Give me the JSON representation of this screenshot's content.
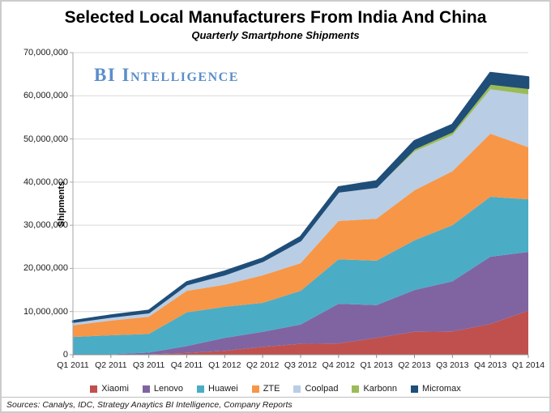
{
  "header": {
    "title": "Selected Local Manufacturers From India And China",
    "subtitle": "Quarterly Smartphone Shipments"
  },
  "watermark": "BI Intelligence",
  "footer": {
    "sources": "Sources: Canalys, IDC, Strategy Anaytics BI Intelligence, Company Reports"
  },
  "chart_data": {
    "type": "area",
    "stacked": true,
    "title": "Selected Local Manufacturers From India And China",
    "subtitle": "Quarterly Smartphone Shipments",
    "xlabel": "",
    "ylabel": "Shipments",
    "ylim": [
      0,
      70000000
    ],
    "ytick_interval": 10000000,
    "ytick_labels": [
      "0",
      "10,000,000",
      "20,000,000",
      "30,000,000",
      "40,000,000",
      "50,000,000",
      "60,000,000",
      "70,000,000"
    ],
    "grid": true,
    "legend_position": "bottom",
    "categories": [
      "Q1 2011",
      "Q2 2011",
      "Q3 2011",
      "Q4 2011",
      "Q1 2012",
      "Q2 2012",
      "Q3 2012",
      "Q4 2012",
      "Q1 2013",
      "Q2 2013",
      "Q3 2013",
      "Q4 2013",
      "Q1 2014"
    ],
    "series": [
      {
        "name": "Xiaomi",
        "color": "#C0504D",
        "values": [
          0,
          0,
          100000,
          400000,
          900000,
          1800000,
          2500000,
          2600000,
          3900000,
          5300000,
          5400000,
          7100000,
          10200000
        ]
      },
      {
        "name": "Lenovo",
        "color": "#8064A2",
        "values": [
          100000,
          100000,
          400000,
          1600000,
          3000000,
          3500000,
          4500000,
          9200000,
          7600000,
          9700000,
          11600000,
          15600000,
          13600000
        ]
      },
      {
        "name": "Huawei",
        "color": "#4BACC6",
        "values": [
          4000000,
          4400000,
          4300000,
          7800000,
          7200000,
          6700000,
          7800000,
          10300000,
          10300000,
          11500000,
          13000000,
          13900000,
          12200000
        ]
      },
      {
        "name": "ZTE",
        "color": "#F79646",
        "values": [
          2700000,
          3400000,
          4000000,
          5000000,
          5100000,
          6400000,
          6400000,
          8900000,
          9700000,
          11600000,
          12500000,
          14600000,
          12100000
        ]
      },
      {
        "name": "Coolpad",
        "color": "#B9CDE5",
        "values": [
          800000,
          900000,
          1000000,
          1500000,
          2400000,
          3300000,
          5300000,
          6700000,
          7200000,
          9000000,
          8400000,
          10300000,
          12200000
        ]
      },
      {
        "name": "Karbonn",
        "color": "#9BBB59",
        "values": [
          0,
          0,
          0,
          0,
          0,
          0,
          0,
          100000,
          200000,
          700000,
          850000,
          1300000,
          1500000
        ]
      },
      {
        "name": "Micromax",
        "color": "#1F4E79",
        "values": [
          200000,
          300000,
          400000,
          500000,
          700000,
          600000,
          800000,
          1000000,
          1300000,
          1700000,
          1550000,
          2500000,
          2500000
        ]
      }
    ]
  }
}
